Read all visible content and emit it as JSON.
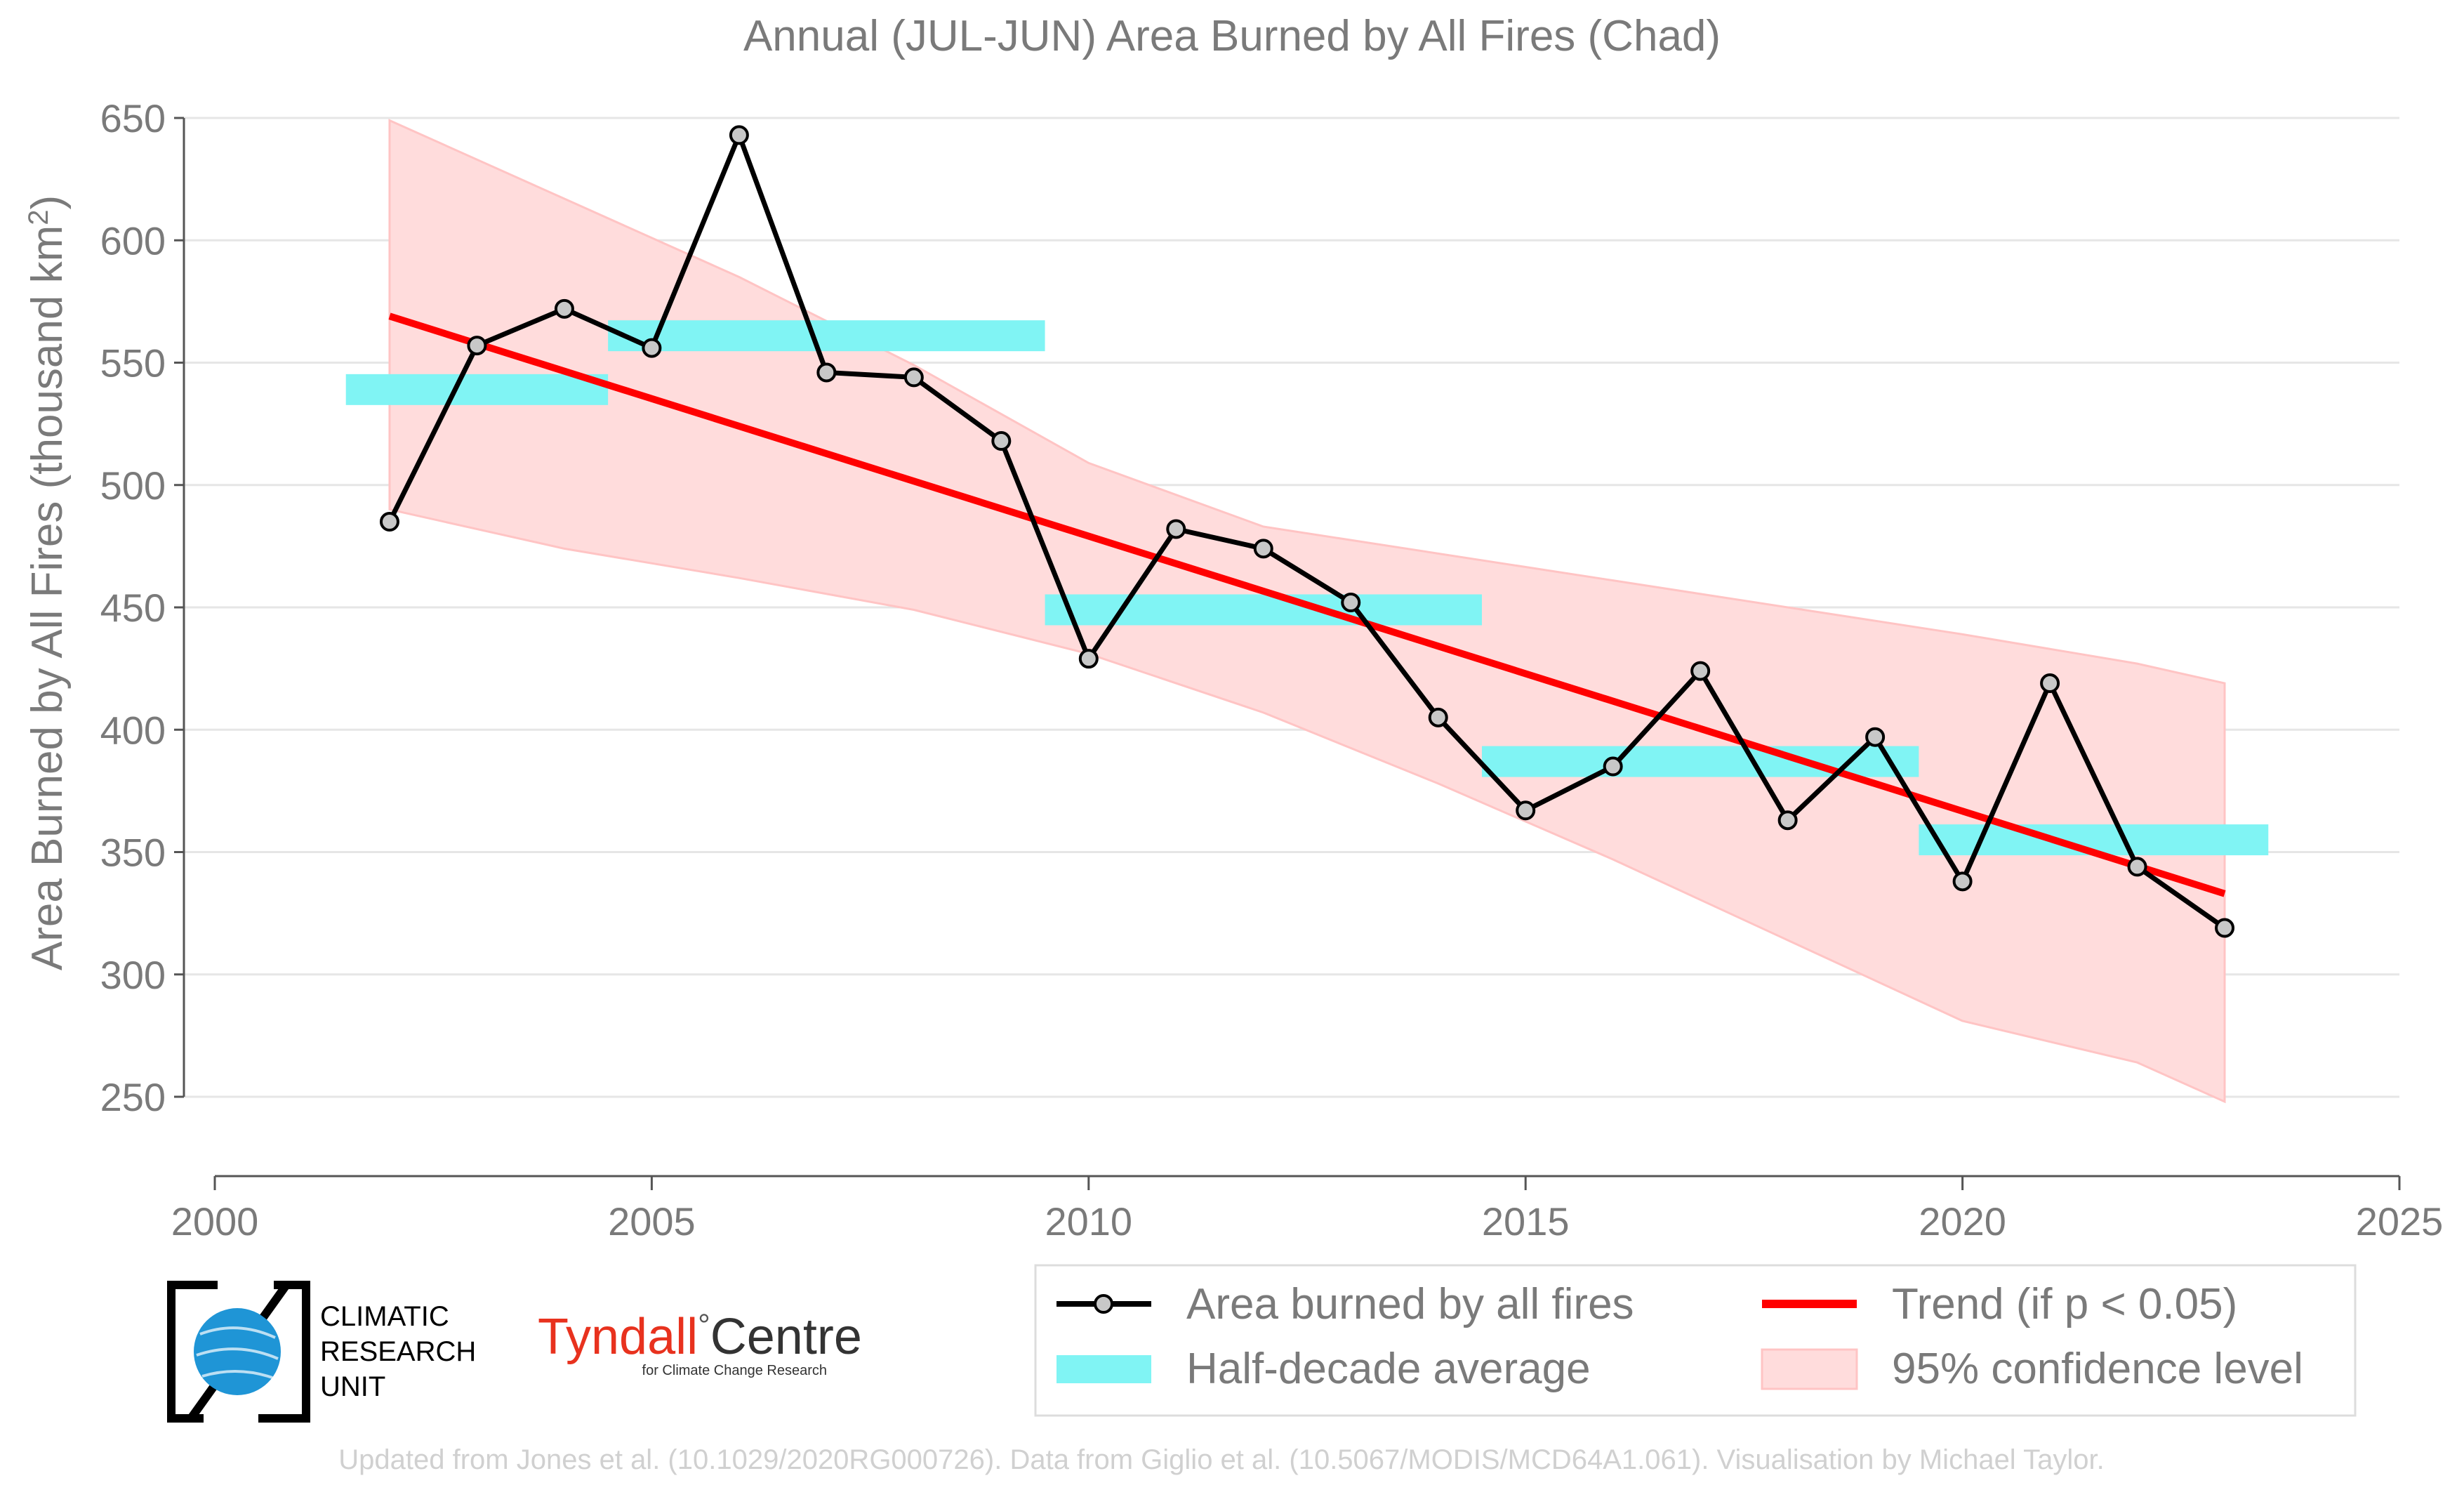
{
  "colors": {
    "series_line": "#000000",
    "marker_fill": "#c8c8c8",
    "trend": "#ff0000",
    "half_decade": "#80f4f4",
    "ci_fill": "#ffdcdc",
    "ci_edge": "#ffc4c4",
    "text": "#7a7a7a",
    "tyndall_red": "#e8321e",
    "cru_blue": "#1f95d6"
  },
  "chart_data": {
    "type": "line",
    "title": "Annual (JUL-JUN) Area Burned by All Fires (Chad)",
    "ylabel_main": "Area Burned by All Fires (thousand km",
    "ylabel_sup": "2",
    "ylabel_end": ")",
    "xlim": [
      2000,
      2025
    ],
    "ylim": [
      250,
      650
    ],
    "x_ticks": [
      2000,
      2005,
      2010,
      2015,
      2020,
      2025
    ],
    "y_ticks": [
      250,
      300,
      350,
      400,
      450,
      500,
      550,
      600,
      650
    ],
    "grid": true,
    "legend_position": "bottom",
    "series": [
      {
        "name": "Area burned by all fires",
        "x": [
          2002,
          2003,
          2004,
          2005,
          2006,
          2007,
          2008,
          2009,
          2010,
          2011,
          2012,
          2013,
          2014,
          2015,
          2016,
          2017,
          2018,
          2019,
          2020,
          2021,
          2022,
          2023
        ],
        "y": [
          485,
          557,
          572,
          556,
          643,
          546,
          544,
          518,
          429,
          482,
          474,
          452,
          405,
          367,
          385,
          424,
          363,
          397,
          338,
          419,
          344,
          319
        ]
      }
    ],
    "trend": {
      "name": "Trend (if p < 0.05)",
      "x": [
        2002,
        2023
      ],
      "y": [
        569,
        333
      ]
    },
    "confidence": {
      "name": "95% confidence level",
      "x": [
        2002,
        2004,
        2006,
        2008,
        2010,
        2012,
        2014,
        2016,
        2018,
        2020,
        2022,
        2023
      ],
      "upper": [
        649,
        617,
        585,
        549,
        509,
        483,
        472,
        461,
        450,
        439,
        427,
        419
      ],
      "lower": [
        490,
        474,
        462,
        449,
        431,
        407,
        378,
        347,
        314,
        281,
        264,
        248
      ]
    },
    "half_decade": {
      "name": "Half-decade average",
      "bars": [
        {
          "x0": 2001.5,
          "x1": 2004.5,
          "y": 539
        },
        {
          "x0": 2004.5,
          "x1": 2009.5,
          "y": 561
        },
        {
          "x0": 2009.5,
          "x1": 2014.5,
          "y": 449
        },
        {
          "x0": 2014.5,
          "x1": 2019.5,
          "y": 387
        },
        {
          "x0": 2019.5,
          "x1": 2023.5,
          "y": 355
        }
      ]
    }
  },
  "logos": {
    "cru_lines": [
      "CLIMATIC",
      "RESEARCH",
      "UNIT"
    ],
    "tyndall_name": "Tyndall",
    "tyndall_degree": "°",
    "tyndall_centre": "Centre",
    "tyndall_sub": "for Climate Change Research"
  },
  "footer": "Updated from Jones et al. (10.1029/2020RG000726). Data from Giglio et al. (10.5067/MODIS/MCD64A1.061). Visualisation by Michael Taylor."
}
